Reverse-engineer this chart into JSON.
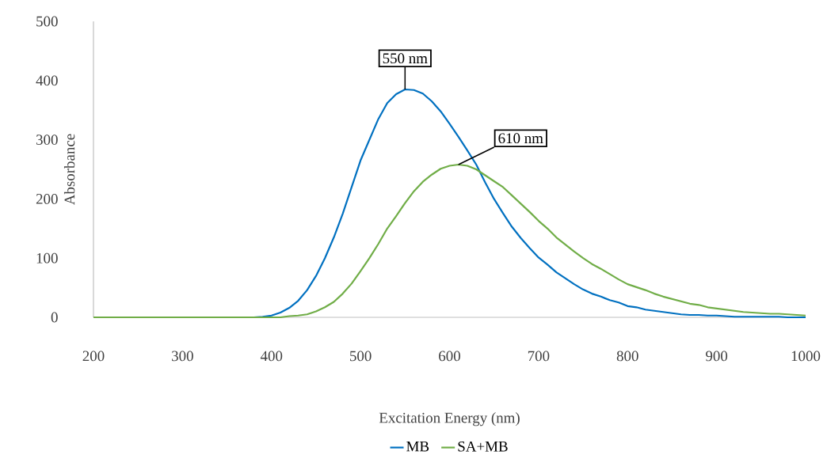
{
  "chart_data": {
    "type": "line",
    "xlabel": "Excitation Energy (nm)",
    "ylabel": "Absorbance",
    "x": [
      200,
      210,
      220,
      230,
      240,
      250,
      260,
      270,
      280,
      290,
      300,
      310,
      320,
      330,
      340,
      350,
      360,
      370,
      380,
      390,
      400,
      410,
      420,
      430,
      440,
      450,
      460,
      470,
      480,
      490,
      500,
      510,
      520,
      530,
      540,
      550,
      560,
      570,
      580,
      590,
      600,
      610,
      620,
      630,
      640,
      650,
      660,
      670,
      680,
      690,
      700,
      710,
      720,
      730,
      740,
      750,
      760,
      770,
      780,
      790,
      800,
      810,
      820,
      830,
      840,
      850,
      860,
      870,
      880,
      890,
      900,
      910,
      920,
      930,
      940,
      950,
      960,
      970,
      980,
      990,
      1000
    ],
    "series": [
      {
        "name": "MB",
        "color": "#0070c0",
        "values": [
          null,
          null,
          null,
          null,
          null,
          null,
          null,
          null,
          null,
          null,
          null,
          null,
          null,
          null,
          null,
          null,
          null,
          0,
          0,
          1,
          3,
          8,
          16,
          28,
          46,
          70,
          100,
          135,
          175,
          220,
          265,
          300,
          335,
          362,
          377,
          385,
          384,
          378,
          365,
          348,
          327,
          305,
          282,
          258,
          228,
          200,
          176,
          153,
          134,
          117,
          101,
          89,
          76,
          66,
          56,
          47,
          40,
          35,
          29,
          25,
          19,
          17,
          13,
          11,
          9,
          7,
          5,
          4,
          4,
          3,
          3,
          2,
          1,
          1,
          1,
          1,
          1,
          1,
          0,
          0,
          0
        ]
      },
      {
        "name": "SA+MB",
        "color": "#70ad47",
        "values": [
          0,
          0,
          0,
          0,
          0,
          0,
          0,
          0,
          0,
          0,
          0,
          0,
          0,
          0,
          0,
          0,
          0,
          0,
          0,
          0,
          0,
          0,
          2,
          3,
          5,
          10,
          17,
          26,
          40,
          57,
          78,
          100,
          124,
          150,
          171,
          193,
          213,
          229,
          241,
          251,
          256,
          258,
          256,
          250,
          240,
          230,
          220,
          206,
          192,
          178,
          163,
          150,
          135,
          123,
          111,
          100,
          90,
          82,
          73,
          64,
          56,
          51,
          46,
          40,
          35,
          31,
          27,
          23,
          21,
          17,
          15,
          13,
          11,
          9,
          8,
          7,
          6,
          6,
          5,
          4,
          3
        ]
      }
    ],
    "annotations": [
      {
        "text": "550 nm",
        "x": 550,
        "y": 385
      },
      {
        "text": "610 nm",
        "x": 610,
        "y": 258
      }
    ],
    "xlim": [
      200,
      1000
    ],
    "ylim": [
      0,
      500
    ],
    "xticks": [
      200,
      300,
      400,
      500,
      600,
      700,
      800,
      900,
      1000
    ],
    "yticks": [
      0,
      100,
      200,
      300,
      400,
      500
    ],
    "legend": "bottom",
    "grid": false,
    "marker": "none",
    "line_style": "solid"
  }
}
